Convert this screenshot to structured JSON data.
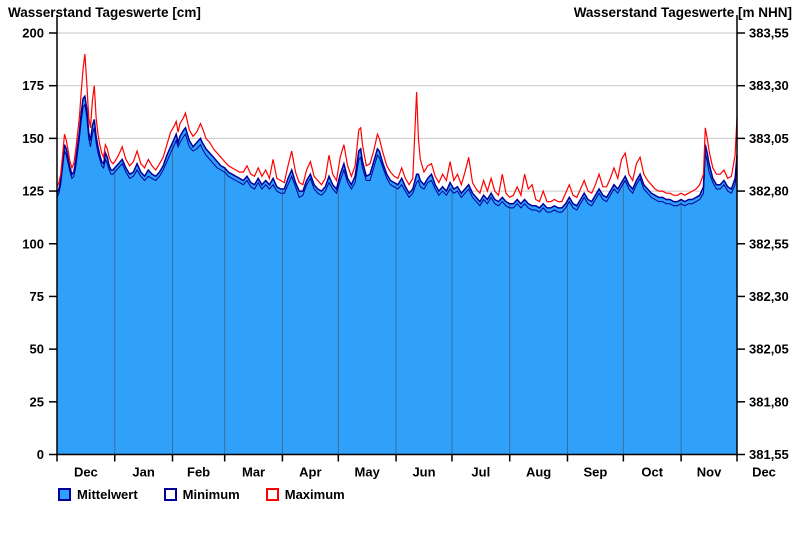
{
  "header": {
    "title_left": "Wasserstand Tageswerte [cm]",
    "title_right": "Wasserstand Tageswerte [m NHN]"
  },
  "legend": {
    "items": [
      {
        "label": "Mittelwert",
        "swatch_fill": "#2FA1FB",
        "swatch_border": "#000099"
      },
      {
        "label": "Minimum",
        "swatch_fill": "#FFFFFF",
        "swatch_border": "#000099"
      },
      {
        "label": "Maximum",
        "swatch_fill": "#FFFFFF",
        "swatch_border": "#FF0000"
      }
    ]
  },
  "colors": {
    "area_fill": "#2FA1FB",
    "mean_line": "#000099",
    "min_line": "#000099",
    "max_line": "#FF0000",
    "grid": "#C8C8C8",
    "month_line": "#3D6E99",
    "axis": "#000000"
  },
  "chart_data": {
    "type": "area",
    "title": "Wasserstand Tageswerte",
    "ylabel_left": "Wasserstand Tageswerte [cm]",
    "ylabel_right": "Wasserstand Tageswerte [m NHN]",
    "grid": "horizontal-on, month-separators-inside-area",
    "legend_position": "bottom-left",
    "y_axis_left": {
      "range": [
        0,
        200
      ],
      "ticks": [
        0,
        25,
        50,
        75,
        100,
        125,
        150,
        175,
        200
      ]
    },
    "y_axis_right": {
      "range": [
        381.55,
        383.55
      ],
      "tick_labels": [
        "381,55",
        "381,80",
        "382,05",
        "382,30",
        "382,55",
        "382,80",
        "383,05",
        "383,30",
        "383,55"
      ]
    },
    "x_axis": {
      "month_labels": [
        "Dec",
        "Jan",
        "Feb",
        "Mar",
        "Apr",
        "May",
        "Jun",
        "Jul",
        "Aug",
        "Sep",
        "Oct",
        "Nov",
        "Dec"
      ],
      "month_boundaries_day": [
        0,
        31,
        62,
        90,
        121,
        151,
        182,
        212,
        243,
        274,
        304,
        335,
        365
      ],
      "days_total": 365
    },
    "series_names": [
      "Minimum",
      "Mittelwert",
      "Maximum"
    ],
    "points_format": "[day, minimum_cm, mittelwert_cm, maximum_cm]",
    "points": [
      [
        0,
        122,
        124,
        127
      ],
      [
        1,
        124,
        126,
        129
      ],
      [
        2,
        128,
        130,
        133
      ],
      [
        3,
        136,
        138,
        142
      ],
      [
        4,
        144,
        147,
        152
      ],
      [
        5,
        142,
        145,
        149
      ],
      [
        6,
        138,
        140,
        144
      ],
      [
        7,
        134,
        136,
        139
      ],
      [
        8,
        131,
        133,
        136
      ],
      [
        9,
        132,
        134,
        138
      ],
      [
        10,
        136,
        139,
        144
      ],
      [
        11,
        143,
        146,
        152
      ],
      [
        12,
        150,
        153,
        160
      ],
      [
        13,
        158,
        162,
        172
      ],
      [
        14,
        165,
        169,
        183
      ],
      [
        15,
        166,
        170,
        190
      ],
      [
        16,
        160,
        164,
        176
      ],
      [
        17,
        150,
        153,
        160
      ],
      [
        18,
        146,
        149,
        155
      ],
      [
        19,
        152,
        156,
        168
      ],
      [
        20,
        155,
        159,
        175
      ],
      [
        21,
        148,
        151,
        160
      ],
      [
        22,
        143,
        146,
        152
      ],
      [
        23,
        140,
        142,
        147
      ],
      [
        24,
        137,
        139,
        143
      ],
      [
        25,
        136,
        138,
        141
      ],
      [
        26,
        140,
        143,
        147
      ],
      [
        27,
        138,
        141,
        145
      ],
      [
        28,
        135,
        137,
        141
      ],
      [
        29,
        133,
        135,
        139
      ],
      [
        30,
        133,
        135,
        138
      ],
      [
        31,
        134,
        136,
        139
      ],
      [
        33,
        136,
        138,
        142
      ],
      [
        35,
        138,
        140,
        146
      ],
      [
        37,
        134,
        136,
        140
      ],
      [
        39,
        131,
        133,
        137
      ],
      [
        41,
        132,
        134,
        139
      ],
      [
        43,
        135,
        138,
        144
      ],
      [
        45,
        132,
        134,
        138
      ],
      [
        47,
        130,
        132,
        136
      ],
      [
        49,
        132,
        135,
        140
      ],
      [
        51,
        131,
        133,
        137
      ],
      [
        53,
        130,
        132,
        135
      ],
      [
        55,
        132,
        134,
        138
      ],
      [
        57,
        135,
        137,
        141
      ],
      [
        59,
        139,
        142,
        147
      ],
      [
        61,
        143,
        146,
        153
      ],
      [
        63,
        147,
        150,
        156
      ],
      [
        64,
        149,
        152,
        158
      ],
      [
        65,
        146,
        148,
        153
      ],
      [
        66,
        148,
        151,
        157
      ],
      [
        68,
        151,
        154,
        160
      ],
      [
        69,
        152,
        155,
        162
      ],
      [
        70,
        149,
        152,
        158
      ],
      [
        71,
        146,
        149,
        154
      ],
      [
        73,
        144,
        146,
        151
      ],
      [
        75,
        145,
        148,
        153
      ],
      [
        77,
        147,
        150,
        157
      ],
      [
        78,
        145,
        148,
        155
      ],
      [
        80,
        142,
        145,
        150
      ],
      [
        82,
        140,
        143,
        148
      ],
      [
        84,
        138,
        141,
        145
      ],
      [
        86,
        136,
        139,
        143
      ],
      [
        88,
        135,
        137,
        141
      ],
      [
        90,
        134,
        136,
        139
      ],
      [
        92,
        132,
        134,
        137
      ],
      [
        94,
        131,
        133,
        136
      ],
      [
        96,
        130,
        132,
        135
      ],
      [
        98,
        129,
        131,
        134
      ],
      [
        100,
        128,
        130,
        134
      ],
      [
        102,
        130,
        132,
        137
      ],
      [
        104,
        127,
        129,
        133
      ],
      [
        106,
        126,
        128,
        132
      ],
      [
        108,
        129,
        131,
        136
      ],
      [
        110,
        126,
        128,
        132
      ],
      [
        112,
        128,
        130,
        135
      ],
      [
        114,
        126,
        128,
        131
      ],
      [
        116,
        128,
        131,
        140
      ],
      [
        118,
        125,
        127,
        131
      ],
      [
        120,
        124,
        126,
        130
      ],
      [
        122,
        124,
        126,
        129
      ],
      [
        124,
        128,
        131,
        137
      ],
      [
        126,
        132,
        135,
        144
      ],
      [
        128,
        127,
        129,
        134
      ],
      [
        130,
        122,
        125,
        129
      ],
      [
        132,
        123,
        125,
        128
      ],
      [
        134,
        128,
        130,
        135
      ],
      [
        136,
        131,
        133,
        139
      ],
      [
        138,
        126,
        128,
        132
      ],
      [
        140,
        124,
        126,
        130
      ],
      [
        142,
        123,
        125,
        128
      ],
      [
        144,
        125,
        127,
        131
      ],
      [
        146,
        129,
        132,
        142
      ],
      [
        148,
        126,
        128,
        133
      ],
      [
        150,
        124,
        126,
        130
      ],
      [
        152,
        130,
        133,
        141
      ],
      [
        154,
        135,
        138,
        147
      ],
      [
        156,
        129,
        131,
        137
      ],
      [
        158,
        126,
        128,
        132
      ],
      [
        160,
        129,
        132,
        137
      ],
      [
        162,
        140,
        144,
        154
      ],
      [
        163,
        141,
        145,
        155
      ],
      [
        164,
        136,
        139,
        147
      ],
      [
        166,
        130,
        132,
        137
      ],
      [
        168,
        130,
        133,
        138
      ],
      [
        170,
        136,
        139,
        144
      ],
      [
        172,
        142,
        145,
        152
      ],
      [
        173,
        141,
        144,
        150
      ],
      [
        175,
        136,
        138,
        143
      ],
      [
        177,
        131,
        133,
        137
      ],
      [
        179,
        128,
        130,
        134
      ],
      [
        181,
        127,
        129,
        132
      ],
      [
        183,
        126,
        128,
        131
      ],
      [
        185,
        128,
        131,
        136
      ],
      [
        187,
        125,
        127,
        131
      ],
      [
        189,
        122,
        124,
        128
      ],
      [
        191,
        124,
        126,
        131
      ],
      [
        193,
        129,
        133,
        172
      ],
      [
        194,
        130,
        133,
        150
      ],
      [
        195,
        127,
        130,
        140
      ],
      [
        197,
        126,
        128,
        134
      ],
      [
        199,
        129,
        131,
        137
      ],
      [
        201,
        130,
        133,
        138
      ],
      [
        203,
        126,
        128,
        132
      ],
      [
        205,
        123,
        125,
        129
      ],
      [
        207,
        125,
        127,
        133
      ],
      [
        209,
        123,
        125,
        130
      ],
      [
        211,
        126,
        129,
        139
      ],
      [
        213,
        124,
        126,
        130
      ],
      [
        215,
        125,
        127,
        133
      ],
      [
        217,
        122,
        124,
        128
      ],
      [
        219,
        124,
        126,
        134
      ],
      [
        221,
        126,
        128,
        141
      ],
      [
        223,
        122,
        124,
        129
      ],
      [
        225,
        120,
        122,
        126
      ],
      [
        227,
        118,
        120,
        124
      ],
      [
        229,
        121,
        123,
        130
      ],
      [
        231,
        119,
        121,
        125
      ],
      [
        233,
        122,
        124,
        131
      ],
      [
        235,
        119,
        121,
        125
      ],
      [
        237,
        118,
        120,
        123
      ],
      [
        239,
        120,
        122,
        133
      ],
      [
        241,
        118,
        120,
        124
      ],
      [
        243,
        117,
        119,
        122
      ],
      [
        245,
        117,
        119,
        123
      ],
      [
        247,
        119,
        121,
        127
      ],
      [
        249,
        117,
        119,
        123
      ],
      [
        251,
        119,
        121,
        133
      ],
      [
        253,
        117,
        119,
        126
      ],
      [
        255,
        116,
        118,
        128
      ],
      [
        257,
        116,
        118,
        121
      ],
      [
        259,
        115,
        117,
        120
      ],
      [
        261,
        117,
        119,
        125
      ],
      [
        263,
        115,
        117,
        120
      ],
      [
        265,
        115,
        117,
        120
      ],
      [
        267,
        116,
        118,
        121
      ],
      [
        269,
        115,
        117,
        120
      ],
      [
        271,
        115,
        117,
        120
      ],
      [
        273,
        117,
        119,
        124
      ],
      [
        275,
        120,
        122,
        128
      ],
      [
        277,
        117,
        119,
        123
      ],
      [
        279,
        116,
        118,
        122
      ],
      [
        281,
        119,
        121,
        126
      ],
      [
        283,
        122,
        124,
        130
      ],
      [
        285,
        119,
        121,
        125
      ],
      [
        287,
        118,
        120,
        124
      ],
      [
        289,
        121,
        123,
        128
      ],
      [
        291,
        124,
        126,
        133
      ],
      [
        293,
        121,
        123,
        127
      ],
      [
        295,
        120,
        122,
        127
      ],
      [
        297,
        123,
        125,
        131
      ],
      [
        299,
        126,
        128,
        136
      ],
      [
        301,
        124,
        126,
        131
      ],
      [
        303,
        127,
        129,
        140
      ],
      [
        305,
        130,
        132,
        143
      ],
      [
        307,
        126,
        128,
        133
      ],
      [
        309,
        124,
        126,
        130
      ],
      [
        311,
        128,
        130,
        138
      ],
      [
        313,
        131,
        133,
        141
      ],
      [
        315,
        126,
        128,
        133
      ],
      [
        317,
        124,
        126,
        130
      ],
      [
        319,
        122,
        124,
        128
      ],
      [
        321,
        121,
        123,
        126
      ],
      [
        323,
        120,
        122,
        125
      ],
      [
        325,
        120,
        122,
        125
      ],
      [
        327,
        119,
        121,
        124
      ],
      [
        329,
        119,
        121,
        124
      ],
      [
        331,
        118,
        120,
        123
      ],
      [
        333,
        118,
        120,
        123
      ],
      [
        335,
        119,
        121,
        124
      ],
      [
        337,
        118,
        120,
        123
      ],
      [
        339,
        119,
        121,
        124
      ],
      [
        341,
        119,
        121,
        125
      ],
      [
        343,
        120,
        122,
        126
      ],
      [
        345,
        121,
        123,
        128
      ],
      [
        347,
        124,
        127,
        133
      ],
      [
        348,
        143,
        147,
        155
      ],
      [
        349,
        139,
        143,
        150
      ],
      [
        350,
        134,
        138,
        144
      ],
      [
        352,
        129,
        131,
        136
      ],
      [
        354,
        126,
        128,
        133
      ],
      [
        356,
        126,
        128,
        133
      ],
      [
        358,
        128,
        130,
        135
      ],
      [
        360,
        125,
        127,
        131
      ],
      [
        362,
        124,
        126,
        132
      ],
      [
        364,
        128,
        131,
        142
      ],
      [
        365,
        137,
        142,
        160
      ]
    ]
  }
}
